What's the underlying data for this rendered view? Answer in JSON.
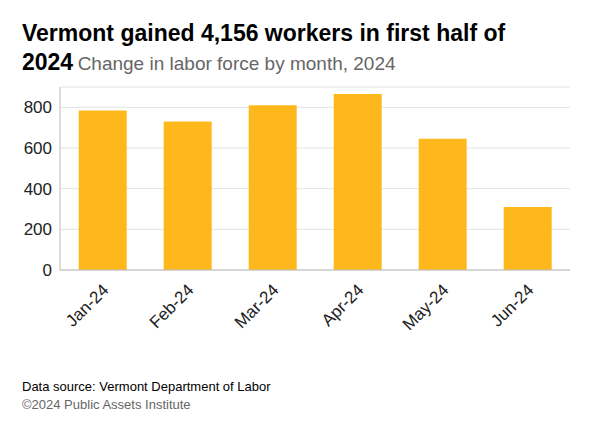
{
  "chart_data": {
    "type": "bar",
    "title": "Vermont gained 4,156 workers in first half of 2024",
    "subtitle": "Change in labor force by month, 2024",
    "categories": [
      "Jan-24",
      "Feb-24",
      "Mar-24",
      "Apr-24",
      "May-24",
      "Jun-24"
    ],
    "values": [
      785,
      730,
      810,
      865,
      645,
      310
    ],
    "color": "#ffb81c",
    "ylim": [
      0,
      900
    ],
    "yticks": [
      0,
      200,
      400,
      600,
      800
    ],
    "grid": true,
    "source": "Data source: Vermont Department of Labor",
    "credit": "©2024 Public Assets Institute"
  }
}
